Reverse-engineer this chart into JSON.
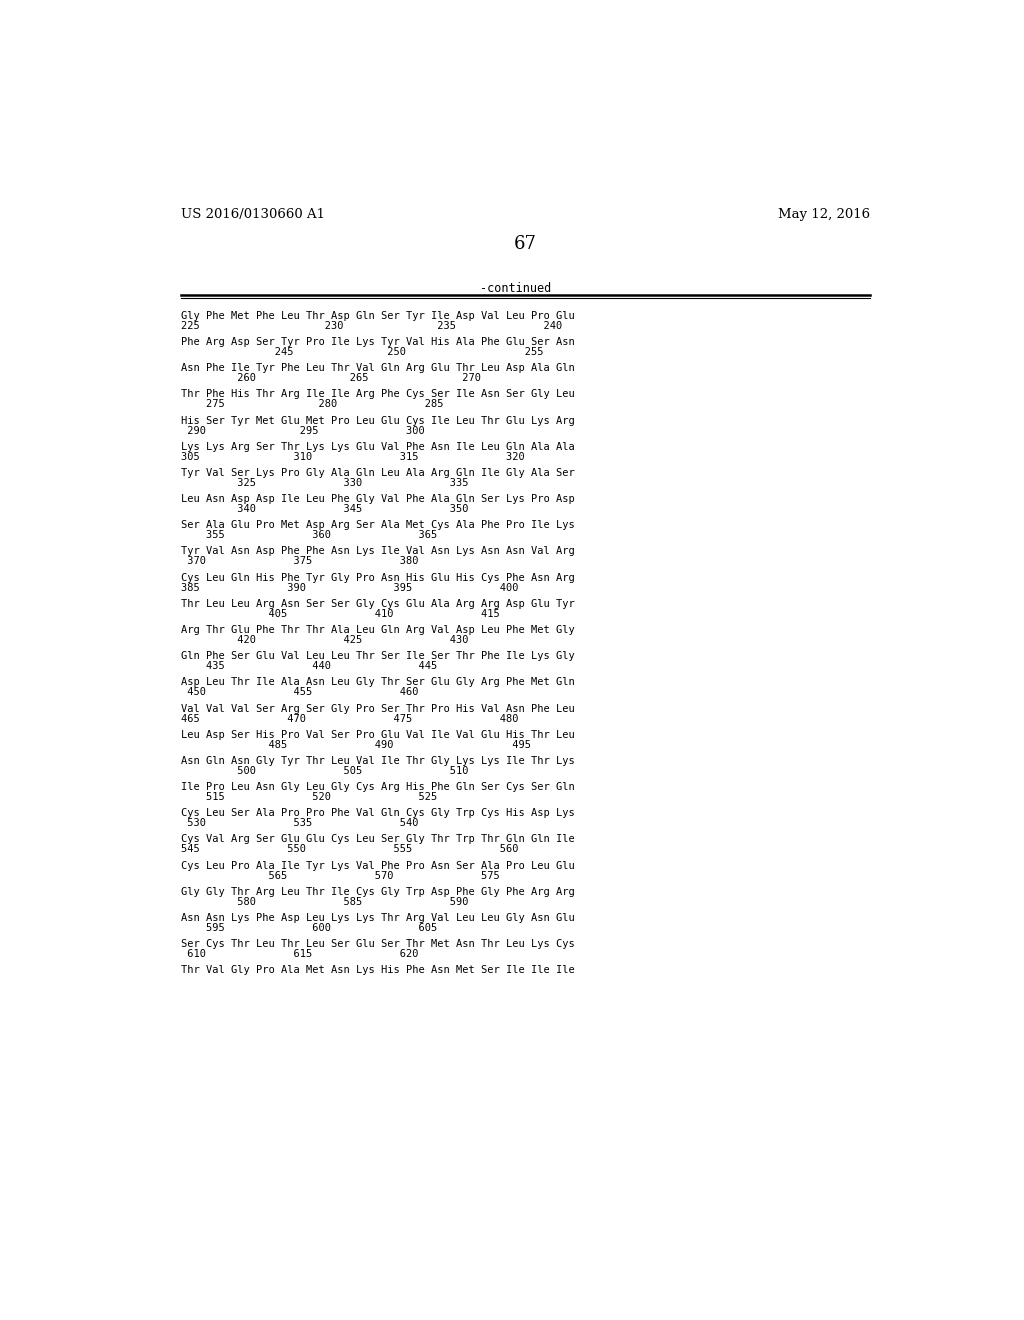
{
  "header_left": "US 2016/0130660 A1",
  "header_right": "May 12, 2016",
  "page_number": "67",
  "continued_text": "-continued",
  "background_color": "#ffffff",
  "text_color": "#000000",
  "sequence_lines": [
    [
      "Gly Phe Met Phe Leu Thr Asp Gln Ser Tyr Ile Asp Val Leu Pro Glu",
      "225                    230               235              240"
    ],
    [
      "Phe Arg Asp Ser Tyr Pro Ile Lys Tyr Val His Ala Phe Glu Ser Asn",
      "               245               250                   255"
    ],
    [
      "Asn Phe Ile Tyr Phe Leu Thr Val Gln Arg Glu Thr Leu Asp Ala Gln",
      "         260               265               270"
    ],
    [
      "Thr Phe His Thr Arg Ile Ile Arg Phe Cys Ser Ile Asn Ser Gly Leu",
      "    275               280              285"
    ],
    [
      "His Ser Tyr Met Glu Met Pro Leu Glu Cys Ile Leu Thr Glu Lys Arg",
      " 290               295              300"
    ],
    [
      "Lys Lys Arg Ser Thr Lys Lys Glu Val Phe Asn Ile Leu Gln Ala Ala",
      "305               310              315              320"
    ],
    [
      "Tyr Val Ser Lys Pro Gly Ala Gln Leu Ala Arg Gln Ile Gly Ala Ser",
      "         325              330              335"
    ],
    [
      "Leu Asn Asp Asp Ile Leu Phe Gly Val Phe Ala Gln Ser Lys Pro Asp",
      "         340              345              350"
    ],
    [
      "Ser Ala Glu Pro Met Asp Arg Ser Ala Met Cys Ala Phe Pro Ile Lys",
      "    355              360              365"
    ],
    [
      "Tyr Val Asn Asp Phe Phe Asn Lys Ile Val Asn Lys Asn Asn Val Arg",
      " 370              375              380"
    ],
    [
      "Cys Leu Gln His Phe Tyr Gly Pro Asn His Glu His Cys Phe Asn Arg",
      "385              390              395              400"
    ],
    [
      "Thr Leu Leu Arg Asn Ser Ser Gly Cys Glu Ala Arg Arg Asp Glu Tyr",
      "              405              410              415"
    ],
    [
      "Arg Thr Glu Phe Thr Thr Ala Leu Gln Arg Val Asp Leu Phe Met Gly",
      "         420              425              430"
    ],
    [
      "Gln Phe Ser Glu Val Leu Leu Thr Ser Ile Ser Thr Phe Ile Lys Gly",
      "    435              440              445"
    ],
    [
      "Asp Leu Thr Ile Ala Asn Leu Gly Thr Ser Glu Gly Arg Phe Met Gln",
      " 450              455              460"
    ],
    [
      "Val Val Val Ser Arg Ser Gly Pro Ser Thr Pro His Val Asn Phe Leu",
      "465              470              475              480"
    ],
    [
      "Leu Asp Ser His Pro Val Ser Pro Glu Val Ile Val Glu His Thr Leu",
      "              485              490                   495"
    ],
    [
      "Asn Gln Asn Gly Tyr Thr Leu Val Ile Thr Gly Lys Lys Ile Thr Lys",
      "         500              505              510"
    ],
    [
      "Ile Pro Leu Asn Gly Leu Gly Cys Arg His Phe Gln Ser Cys Ser Gln",
      "    515              520              525"
    ],
    [
      "Cys Leu Ser Ala Pro Pro Phe Val Gln Cys Gly Trp Cys His Asp Lys",
      " 530              535              540"
    ],
    [
      "Cys Val Arg Ser Glu Glu Cys Leu Ser Gly Thr Trp Thr Gln Gln Ile",
      "545              550              555              560"
    ],
    [
      "Cys Leu Pro Ala Ile Tyr Lys Val Phe Pro Asn Ser Ala Pro Leu Glu",
      "              565              570              575"
    ],
    [
      "Gly Gly Thr Arg Leu Thr Ile Cys Gly Trp Asp Phe Gly Phe Arg Arg",
      "         580              585              590"
    ],
    [
      "Asn Asn Lys Phe Asp Leu Lys Lys Thr Arg Val Leu Leu Gly Asn Glu",
      "    595              600              605"
    ],
    [
      "Ser Cys Thr Leu Thr Leu Ser Glu Ser Thr Met Asn Thr Leu Lys Cys",
      " 610              615              620"
    ],
    [
      "Thr Val Gly Pro Ala Met Asn Lys His Phe Asn Met Ser Ile Ile Ile",
      ""
    ]
  ]
}
